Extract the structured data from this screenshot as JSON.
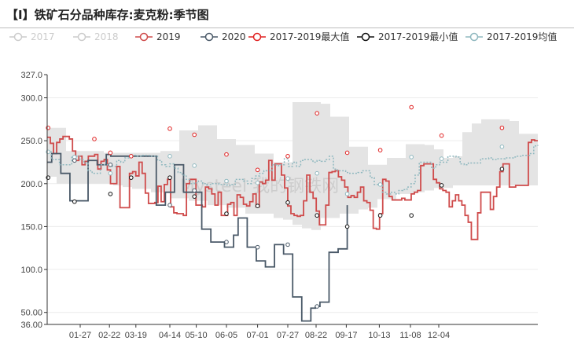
{
  "title": "【I】铁矿石分品种库存:麦克粉:季节图",
  "chart_data": {
    "type": "line",
    "title": "【I】铁矿石分品种库存:麦克粉:季节图",
    "ylim": [
      36,
      327
    ],
    "yticks": [
      {
        "value": 327,
        "label": "327.0"
      },
      {
        "value": 300,
        "label": "300.0"
      },
      {
        "value": 250,
        "label": "250.0"
      },
      {
        "value": 200,
        "label": "200.0"
      },
      {
        "value": 150,
        "label": "150.0"
      },
      {
        "value": 100,
        "label": "100.0"
      },
      {
        "value": 50,
        "label": "50.00"
      },
      {
        "value": 36,
        "label": "36.00"
      }
    ],
    "xlim": [
      0,
      52
    ],
    "xticks": [
      {
        "value": 3.5,
        "label": "01-27"
      },
      {
        "value": 6.6,
        "label": "02-22"
      },
      {
        "value": 9.4,
        "label": "03-19"
      },
      {
        "value": 13.0,
        "label": "04-14"
      },
      {
        "value": 15.8,
        "label": "05-10"
      },
      {
        "value": 19.0,
        "label": "06-05"
      },
      {
        "value": 22.3,
        "label": "07-01"
      },
      {
        "value": 25.5,
        "label": "07-27"
      },
      {
        "value": 28.5,
        "label": "08-22"
      },
      {
        "value": 31.7,
        "label": "09-17"
      },
      {
        "value": 35.2,
        "label": "10-13"
      },
      {
        "value": 38.5,
        "label": "11-08"
      },
      {
        "value": 41.5,
        "label": "12-04"
      }
    ],
    "band": {
      "name_max": "2017-2019最大值",
      "name_min": "2017-2019最小值",
      "max": [
        265,
        265,
        238,
        238,
        238,
        238,
        236,
        236,
        236,
        236,
        236,
        236,
        238,
        238,
        262,
        262,
        268,
        268,
        252,
        252,
        245,
        245,
        235,
        235,
        225,
        225,
        295,
        295,
        295,
        293,
        278,
        278,
        243,
        243,
        222,
        222,
        230,
        230,
        246,
        246,
        245,
        240,
        230,
        232,
        260,
        270,
        275,
        275,
        275,
        273,
        258,
        258,
        245
      ],
      "min": [
        208,
        208,
        200,
        200,
        200,
        200,
        200,
        200,
        198,
        196,
        194,
        194,
        190,
        190,
        183,
        183,
        180,
        180,
        175,
        175,
        172,
        172,
        165,
        165,
        165,
        160,
        158,
        152,
        148,
        146,
        160,
        160,
        165,
        165,
        170,
        172,
        182,
        182,
        188,
        188,
        190,
        192,
        195,
        195,
        198,
        198,
        198,
        198,
        198,
        198,
        198,
        198,
        198
      ],
      "fill": "#e4e4e4"
    },
    "series": [
      {
        "name": "2017",
        "color": "#cccccc",
        "values": [],
        "inactive": true
      },
      {
        "name": "2018",
        "color": "#cccccc",
        "values": [],
        "inactive": true
      },
      {
        "name": "2019",
        "color": "#cf4b4b",
        "values": [
          254,
          247,
          235,
          248,
          252,
          255,
          255,
          252,
          238,
          227,
          232,
          222,
          226,
          232,
          232,
          234,
          217,
          226,
          228,
          216,
          200,
          200,
          220,
          172,
          172,
          172,
          212,
          214,
          209,
          225,
          212,
          189,
          177,
          177,
          178,
          197,
          179,
          199,
          205,
          173,
          166,
          165,
          165,
          163,
          200,
          205,
          205,
          175,
          175,
          173,
          196,
          194,
          188,
          175,
          190,
          163,
          163,
          176,
          178,
          163,
          187,
          184,
          176,
          174,
          179,
          188,
          173,
          202,
          200,
          204,
          227,
          204,
          223,
          223,
          210,
          195,
          174,
          165,
          163,
          162,
          163,
          180,
          210,
          190,
          183,
          168,
          152,
          152,
          175,
          213,
          214,
          215,
          208,
          204,
          196,
          184,
          186,
          184,
          190,
          196,
          180,
          178,
          169,
          148,
          147,
          165,
          205,
          203,
          185,
          181,
          181,
          181,
          183,
          181,
          181,
          188,
          190,
          192,
          221,
          223,
          223,
          223,
          205,
          201,
          194,
          192,
          190,
          173,
          180,
          187,
          180,
          175,
          163,
          155,
          135,
          135,
          166,
          190,
          190,
          190,
          170,
          185,
          196,
          214,
          223,
          223,
          196,
          196,
          198,
          198,
          198,
          198,
          248,
          251,
          250,
          250
        ]
      },
      {
        "name": "2020",
        "color": "#4a5968",
        "values": [
          225,
          235,
          235,
          212,
          212,
          180,
          180,
          180,
          180,
          227,
          227,
          222,
          222,
          234,
          232,
          232,
          232,
          232,
          232,
          232,
          232,
          232,
          232,
          232,
          175,
          175,
          190,
          190,
          222,
          222,
          190,
          190,
          190,
          190,
          147,
          147,
          132,
          132,
          132,
          126,
          126,
          140,
          160,
          160,
          126,
          126,
          110,
          110,
          103,
          103,
          129,
          129,
          118,
          118,
          68,
          68,
          40,
          40,
          55,
          57,
          62,
          62,
          120,
          120,
          124,
          124,
          175
        ]
      },
      {
        "name": "2017-2019均值",
        "color": "#8fb8bf",
        "dashed": true,
        "values": [
          237,
          228,
          228,
          222,
          222,
          222,
          232,
          232,
          228,
          224,
          215,
          212,
          212,
          222,
          222,
          222,
          220,
          227,
          225,
          230,
          232,
          233,
          232,
          233,
          233,
          232,
          232,
          227,
          222,
          220,
          223,
          218,
          213,
          210,
          205,
          200,
          201,
          203,
          200,
          199,
          200,
          200,
          199,
          199,
          198,
          199,
          205,
          205,
          203,
          200,
          206,
          209,
          212,
          215,
          215,
          222,
          221,
          222,
          229,
          220,
          225,
          220,
          227,
          228,
          228,
          225,
          227,
          226,
          228,
          232,
          217,
          215,
          215,
          213,
          212,
          212,
          213,
          215,
          215,
          207,
          199,
          199,
          190,
          188,
          190,
          188,
          192,
          193,
          196,
          200,
          210,
          225,
          225,
          225,
          218,
          222,
          225,
          225,
          232,
          232,
          231,
          223,
          222,
          224,
          224,
          224,
          229,
          229,
          230,
          228,
          229,
          229,
          230,
          230,
          231,
          232,
          233,
          233,
          235,
          244,
          245
        ]
      }
    ],
    "markers": {
      "2019_x": [
        0.1,
        5.0,
        6.7,
        8.9,
        13.0,
        15.6,
        19.0,
        22.3,
        25.5,
        28.6,
        31.8,
        35.3,
        38.6,
        41.8,
        48.2
      ],
      "2019_y": [
        265,
        252,
        236,
        232,
        264,
        257,
        234,
        216,
        232,
        282,
        236,
        239,
        289,
        256,
        265
      ],
      "min_x": [
        0.1,
        2.9,
        6.7,
        8.9,
        13.0,
        15.6,
        19.0,
        22.3,
        25.5,
        28.6,
        31.8,
        35.3,
        38.6,
        41.8,
        48.2
      ],
      "min_y": [
        207,
        179,
        188,
        207,
        207,
        185,
        165,
        174,
        178,
        163,
        150,
        163,
        163,
        198,
        217
      ],
      "avg_x": [
        0.1,
        2.9,
        6.7,
        8.9,
        13.0,
        15.6,
        19.0,
        22.3,
        25.5,
        28.6,
        31.8,
        35.3,
        38.6,
        41.8,
        48.2
      ],
      "avg_y": [
        237,
        231,
        212,
        232,
        232,
        221,
        203,
        201,
        206,
        212,
        188,
        199,
        231,
        229,
        243
      ],
      "s2020_x": [
        2.9,
        6.7,
        13.0,
        15.6,
        19.0,
        22.3,
        25.5,
        28.6
      ],
      "s2020_y": [
        227,
        222,
        175,
        192,
        132,
        126,
        129,
        57
      ]
    },
    "watermark": "Mysteel 我的钢铁网"
  },
  "legend": [
    {
      "label": "2017",
      "color": "#cccccc",
      "text_color": "#cccccc",
      "type": "line-circle"
    },
    {
      "label": "2018",
      "color": "#cccccc",
      "text_color": "#cccccc",
      "type": "line-circle"
    },
    {
      "label": "2019",
      "color": "#cf4b4b",
      "text_color": "#333333",
      "type": "line-circle"
    },
    {
      "label": "2020",
      "color": "#4a5968",
      "text_color": "#333333",
      "type": "line-circle"
    },
    {
      "label": "2017-2019最大值",
      "color": "#e02020",
      "text_color": "#333333",
      "type": "line-circle"
    },
    {
      "label": "2017-2019最小值",
      "color": "#111111",
      "text_color": "#333333",
      "type": "line-circle"
    },
    {
      "label": "2017-2019均值",
      "color": "#8fb8bf",
      "text_color": "#333333",
      "type": "line-circle"
    }
  ]
}
